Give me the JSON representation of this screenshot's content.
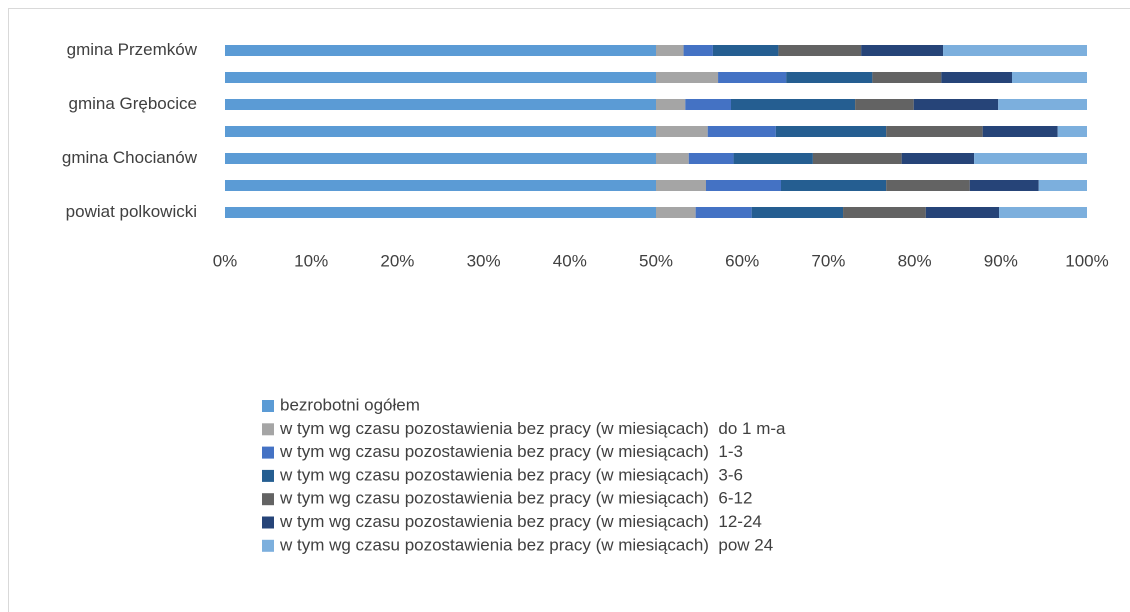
{
  "chart_data": {
    "type": "bar",
    "orientation": "horizontal",
    "stacked": true,
    "categories": [
      "gmina Przemków",
      null,
      "gmina Grębocice",
      null,
      "gmina Chocianów",
      null,
      "powiat polkowicki"
    ],
    "series": [
      {
        "name": "bezrobotni ogółem",
        "color": "#5b9bd5",
        "values": [
          50,
          50,
          50,
          50,
          50,
          50,
          50
        ]
      },
      {
        "name": "w tym wg czasu pozostawienia bez pracy (w miesiącach)  do 1 m-a",
        "color": "#a5a5a5",
        "values": [
          3.2,
          7.2,
          3.4,
          6.0,
          3.8,
          5.8,
          4.6
        ]
      },
      {
        "name": "w tym wg czasu pozostawienia bez pracy (w miesiącach)  1-3",
        "color": "#4472c4",
        "values": [
          3.4,
          7.9,
          5.3,
          7.9,
          5.2,
          8.7,
          6.5
        ]
      },
      {
        "name": "w tym wg czasu pozostawienia bez pracy (w miesiącach)  3-6",
        "color": "#255e91",
        "values": [
          7.6,
          10.0,
          14.4,
          12.8,
          9.2,
          12.2,
          10.6
        ]
      },
      {
        "name": "w tym wg czasu pozostawienia bez pracy (w miesiącach)  6-12",
        "color": "#636363",
        "values": [
          9.6,
          8.0,
          6.8,
          11.2,
          10.3,
          9.7,
          9.6
        ]
      },
      {
        "name": "w tym wg czasu pozostawienia bez pracy (w miesiącach)  12-24",
        "color": "#264478",
        "values": [
          9.5,
          8.2,
          9.8,
          8.7,
          8.4,
          8.0,
          8.5
        ]
      },
      {
        "name": "w tym wg czasu pozostawienia bez pracy (w miesiącach)  pow 24",
        "color": "#7cafdd",
        "values": [
          16.7,
          8.7,
          10.3,
          3.4,
          13.1,
          5.6,
          10.2
        ]
      }
    ],
    "xlim": [
      0,
      100
    ],
    "xticks": [
      {
        "value": 0,
        "label": "0%"
      },
      {
        "value": 10,
        "label": "10%"
      },
      {
        "value": 20,
        "label": "20%"
      },
      {
        "value": 30,
        "label": "30%"
      },
      {
        "value": 40,
        "label": "40%"
      },
      {
        "value": 50,
        "label": "50%"
      },
      {
        "value": 60,
        "label": "60%"
      },
      {
        "value": 70,
        "label": "70%"
      },
      {
        "value": 80,
        "label": "80%"
      },
      {
        "value": 90,
        "label": "90%"
      },
      {
        "value": 100,
        "label": "100%"
      }
    ],
    "legend": "bottom"
  }
}
